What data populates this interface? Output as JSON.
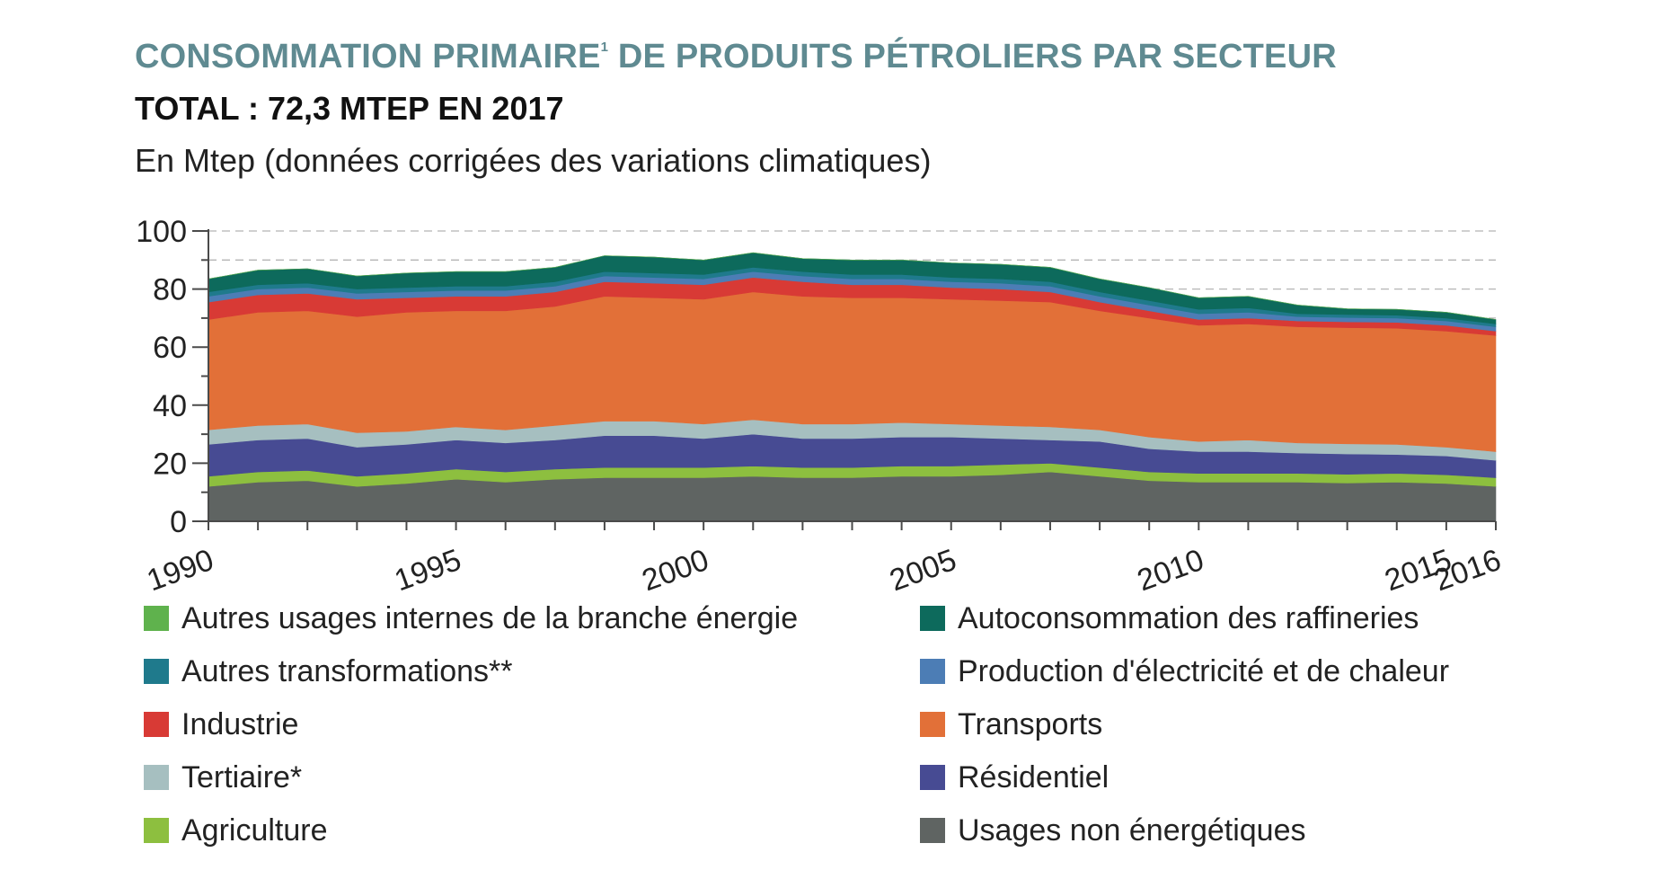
{
  "header": {
    "title": "CONSOMMATION PRIMAIRE",
    "title_sup": "1",
    "title_rest": " DE PRODUITS PÉTROLIERS PAR SECTEUR",
    "subtitle": "TOTAL : 72,3 MTEP EN 2017",
    "unit": "En Mtep (données corrigées des variations climatiques)"
  },
  "chart_data": {
    "type": "area",
    "stacked": true,
    "x": [
      1990,
      1991,
      1992,
      1993,
      1994,
      1995,
      1996,
      1997,
      1998,
      1999,
      2000,
      2001,
      2002,
      2003,
      2004,
      2005,
      2006,
      2007,
      2008,
      2009,
      2010,
      2011,
      2012,
      2013,
      2014,
      2015,
      2016
    ],
    "x_tick_labels": [
      "1990",
      "1995",
      "2000",
      "2005",
      "2010",
      "2015",
      "2016"
    ],
    "y_ticks": [
      "0",
      "20",
      "40",
      "60",
      "80",
      "100"
    ],
    "ylim": [
      0,
      100
    ],
    "grid": "dashed horizontal",
    "legend_position": "bottom",
    "series": [
      {
        "name": "Usages non énergétiques",
        "color": "#5f6462",
        "values": [
          12,
          13.5,
          14,
          12,
          13,
          14.5,
          13.5,
          14.5,
          15,
          15,
          15,
          15.5,
          15,
          15,
          15.5,
          15.5,
          16,
          17,
          15.5,
          14,
          13.5,
          13.5,
          13.5,
          13.2,
          13.5,
          13,
          12
        ]
      },
      {
        "name": "Agriculture",
        "color": "#8dbf3f",
        "values": [
          3.5,
          3.5,
          3.5,
          3.5,
          3.5,
          3.5,
          3.5,
          3.5,
          3.5,
          3.5,
          3.5,
          3.5,
          3.5,
          3.5,
          3.5,
          3.5,
          3.5,
          3.0,
          3.0,
          3.0,
          3.0,
          3.0,
          3.0,
          3.0,
          3.0,
          3.0,
          3.0
        ]
      },
      {
        "name": "Résidentiel",
        "color": "#474b93",
        "values": [
          11,
          11,
          11,
          10,
          10,
          10,
          10,
          10,
          11,
          11,
          10,
          11,
          10,
          10,
          10,
          10,
          9,
          8,
          9,
          8,
          7.5,
          7.5,
          7,
          7,
          6.5,
          6.5,
          6
        ]
      },
      {
        "name": "Tertiaire*",
        "color": "#a6bfc0",
        "values": [
          5,
          5,
          5,
          5,
          4.5,
          4.5,
          4.5,
          5,
          5,
          5,
          5,
          5,
          5,
          5,
          5,
          4.5,
          4.5,
          4.5,
          4,
          4,
          3.5,
          4,
          3.5,
          3.5,
          3.5,
          3,
          3
        ]
      },
      {
        "name": "Transports",
        "color": "#e27038",
        "values": [
          38,
          39,
          39,
          40,
          41,
          40,
          41,
          41,
          43,
          42.5,
          43,
          44,
          44,
          43.5,
          43,
          43,
          43,
          43,
          41,
          41,
          40,
          40,
          40,
          40,
          40,
          40,
          40
        ]
      },
      {
        "name": "Industrie",
        "color": "#d83a35",
        "values": [
          6,
          6,
          6,
          6,
          5,
          5,
          5,
          5,
          5,
          5,
          5,
          5,
          5,
          4.5,
          4.5,
          4,
          4,
          3.5,
          3,
          2.5,
          2,
          2,
          2,
          2,
          2,
          2,
          1.5
        ]
      },
      {
        "name": "Production d'électricité et de chaleur",
        "color": "#4c7db5",
        "values": [
          2,
          2,
          2,
          2,
          2,
          2,
          2,
          2,
          2,
          2,
          2,
          2,
          2,
          2,
          2,
          2,
          2,
          2,
          2,
          2,
          2,
          2,
          1.5,
          1.5,
          1.5,
          1.5,
          1.5
        ]
      },
      {
        "name": "Autres transformations**",
        "color": "#1f7a8c",
        "values": [
          1.5,
          1.5,
          1.5,
          1.5,
          1.5,
          1.5,
          1.5,
          1.5,
          1.5,
          1.5,
          1.5,
          1.5,
          1.5,
          1.5,
          1.5,
          1.5,
          1.5,
          1.5,
          1.5,
          1.5,
          1.5,
          1.5,
          1,
          1,
          1,
          1,
          1
        ]
      },
      {
        "name": "Autoconsommation des raffineries",
        "color": "#0d6a5c",
        "values": [
          4.5,
          5,
          5,
          4.5,
          5,
          5,
          5,
          5,
          5.5,
          5.5,
          5,
          5,
          4.5,
          5,
          5,
          5,
          5,
          5,
          4.5,
          4.5,
          4,
          4,
          3,
          2,
          2,
          2,
          1.5
        ]
      },
      {
        "name": "Autres usages internes de la branche énergie",
        "color": "#5fb24d",
        "values": [
          0,
          0,
          0,
          0,
          0,
          0,
          0,
          0,
          0,
          0,
          0,
          0,
          0,
          0,
          0,
          0,
          0,
          0,
          0,
          0,
          0,
          0,
          0,
          0,
          0,
          0,
          0
        ]
      }
    ]
  },
  "legend": {
    "left": [
      {
        "label": "Autres usages internes de la branche énergie",
        "color": "#5fb24d"
      },
      {
        "label": "Autres transformations**",
        "color": "#1f7a8c"
      },
      {
        "label": "Industrie",
        "color": "#d83a35"
      },
      {
        "label": "Tertiaire*",
        "color": "#a6bfc0"
      },
      {
        "label": "Agriculture",
        "color": "#8dbf3f"
      }
    ],
    "right": [
      {
        "label": "Autoconsommation des raffineries",
        "color": "#0d6a5c"
      },
      {
        "label": "Production d'électricité et de chaleur",
        "color": "#4c7db5"
      },
      {
        "label": "Transports",
        "color": "#e27038"
      },
      {
        "label": "Résidentiel",
        "color": "#474b93"
      },
      {
        "label": "Usages non énergétiques",
        "color": "#5f6462"
      }
    ]
  }
}
